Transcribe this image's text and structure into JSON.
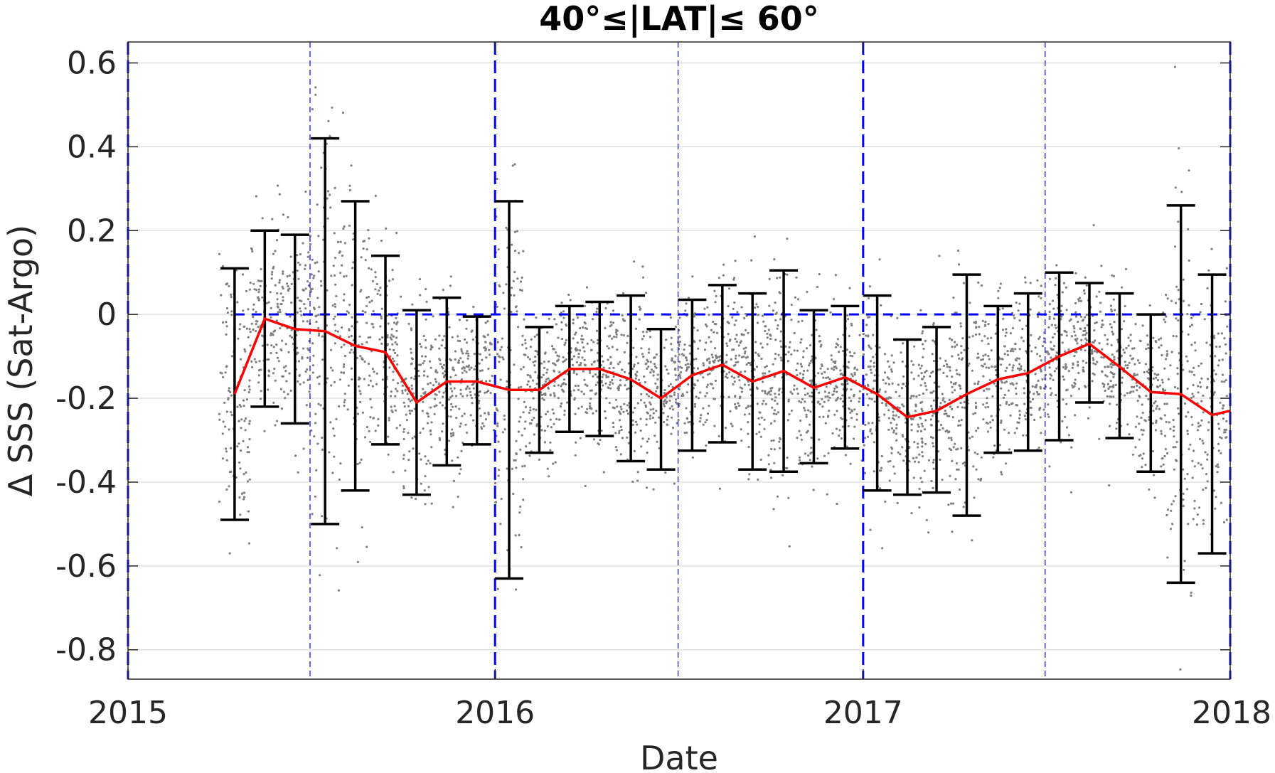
{
  "chart_data": {
    "type": "scatter",
    "title": "40°≤|LAT|≤ 60°",
    "xlabel": "Date",
    "ylabel": "Δ SSS (Sat-Argo)",
    "xlim": [
      "2015-01-01",
      "2018-01-01"
    ],
    "ylim": [
      -0.87,
      0.65
    ],
    "x_ticks": [
      "2015",
      "2016",
      "2017",
      "2018"
    ],
    "y_ticks": [
      "-0.8",
      "-0.6",
      "-0.4",
      "-0.2",
      "0",
      "0.2",
      "0.4",
      "0.6"
    ],
    "y_tick_values": [
      -0.8,
      -0.6,
      -0.4,
      -0.2,
      0,
      0.2,
      0.4,
      0.6
    ],
    "grid": "horizontal",
    "reference_line_y": 0,
    "reference_line_start": "2015-04-17",
    "year_lines": [
      "2015-01-01",
      "2016-01-01",
      "2017-01-01",
      "2018-01-01"
    ],
    "half_year_lines": [
      "2015-07-01",
      "2016-07-01",
      "2017-07-01"
    ],
    "colors": {
      "scatter": "#808080",
      "mean_line": "#ff0000",
      "error_bars": "#000000",
      "reference_lines": "#0000ff",
      "grid": "#e0e0e0"
    },
    "scatter_density": "approximately 4000 points distributed around the monthly mean within the error bar range",
    "series": [
      {
        "values": [
          {
            "x": "2015-04-17",
            "y": -0.19,
            "low": -0.49,
            "high": 0.11
          },
          {
            "x": "2015-05-17",
            "y": -0.01,
            "low": -0.22,
            "high": 0.2
          },
          {
            "x": "2015-06-16",
            "y": -0.035,
            "low": -0.26,
            "high": 0.19
          },
          {
            "x": "2015-07-16",
            "y": -0.04,
            "low": -0.5,
            "high": 0.42
          },
          {
            "x": "2015-08-15",
            "y": -0.075,
            "low": -0.42,
            "high": 0.27
          },
          {
            "x": "2015-09-14",
            "y": -0.09,
            "low": -0.31,
            "high": 0.14
          },
          {
            "x": "2015-10-15",
            "y": -0.21,
            "low": -0.43,
            "high": 0.01
          },
          {
            "x": "2015-11-14",
            "y": -0.16,
            "low": -0.36,
            "high": 0.04
          },
          {
            "x": "2015-12-14",
            "y": -0.16,
            "low": -0.31,
            "high": -0.005
          },
          {
            "x": "2016-01-15",
            "y": -0.18,
            "low": -0.63,
            "high": 0.27
          },
          {
            "x": "2016-02-14",
            "y": -0.18,
            "low": -0.33,
            "high": -0.03
          },
          {
            "x": "2016-03-15",
            "y": -0.13,
            "low": -0.28,
            "high": 0.02
          },
          {
            "x": "2016-04-14",
            "y": -0.13,
            "low": -0.29,
            "high": 0.03
          },
          {
            "x": "2016-05-15",
            "y": -0.155,
            "low": -0.35,
            "high": 0.045
          },
          {
            "x": "2016-06-14",
            "y": -0.2,
            "low": -0.37,
            "high": -0.035
          },
          {
            "x": "2016-07-15",
            "y": -0.145,
            "low": -0.325,
            "high": 0.035
          },
          {
            "x": "2016-08-14",
            "y": -0.12,
            "low": -0.305,
            "high": 0.07
          },
          {
            "x": "2016-09-13",
            "y": -0.16,
            "low": -0.37,
            "high": 0.05
          },
          {
            "x": "2016-10-14",
            "y": -0.135,
            "low": -0.375,
            "high": 0.105
          },
          {
            "x": "2016-11-13",
            "y": -0.175,
            "low": -0.355,
            "high": 0.01
          },
          {
            "x": "2016-12-14",
            "y": -0.15,
            "low": -0.32,
            "high": 0.02
          },
          {
            "x": "2017-01-15",
            "y": -0.19,
            "low": -0.42,
            "high": 0.045
          },
          {
            "x": "2017-02-14",
            "y": -0.245,
            "low": -0.43,
            "high": -0.06
          },
          {
            "x": "2017-03-15",
            "y": -0.23,
            "low": -0.425,
            "high": -0.03
          },
          {
            "x": "2017-04-14",
            "y": -0.19,
            "low": -0.48,
            "high": 0.095
          },
          {
            "x": "2017-05-15",
            "y": -0.155,
            "low": -0.33,
            "high": 0.02
          },
          {
            "x": "2017-06-14",
            "y": -0.14,
            "low": -0.325,
            "high": 0.05
          },
          {
            "x": "2017-07-15",
            "y": -0.1,
            "low": -0.3,
            "high": 0.1
          },
          {
            "x": "2017-08-14",
            "y": -0.07,
            "low": -0.21,
            "high": 0.075
          },
          {
            "x": "2017-09-13",
            "y": -0.125,
            "low": -0.295,
            "high": 0.05
          },
          {
            "x": "2017-10-14",
            "y": -0.185,
            "low": -0.375,
            "high": 0.0
          },
          {
            "x": "2017-11-13",
            "y": -0.19,
            "low": -0.64,
            "high": 0.26
          },
          {
            "x": "2017-12-14",
            "y": -0.24,
            "low": -0.57,
            "high": 0.095
          },
          {
            "x": "2018-01-01",
            "y": -0.23
          }
        ]
      }
    ]
  }
}
